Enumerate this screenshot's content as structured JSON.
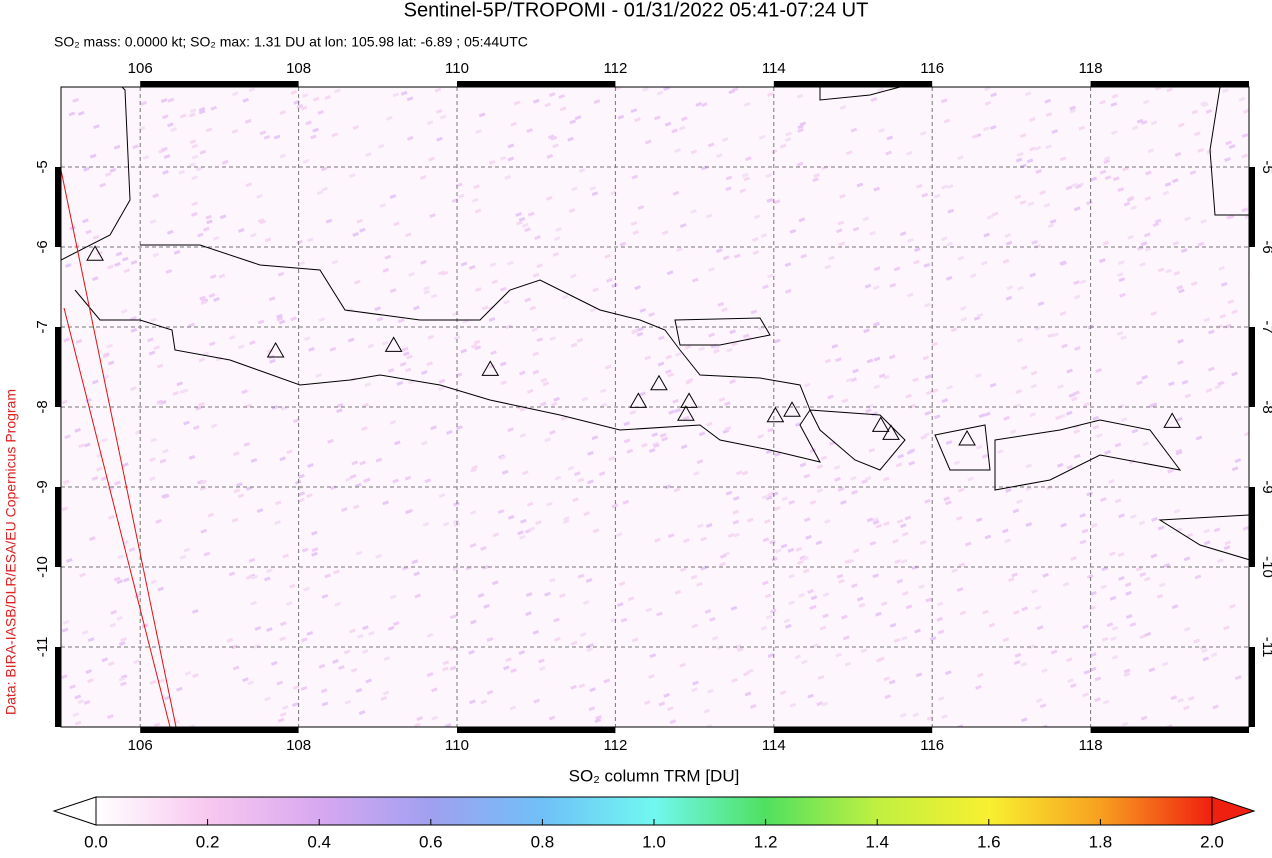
{
  "chart_data": {
    "type": "scatter",
    "title": "Sentinel-5P/TROPOMI - 01/31/2022 05:41-07:24 UT",
    "subtitle": "SO₂ mass: 0.0000 kt; SO₂ max: 1.31 DU at lon: 105.98 lat: -6.89 ; 05:44UTC",
    "x": [
      105.43,
      107.71,
      109.2,
      110.42,
      112.29,
      112.55,
      112.93,
      112.89,
      114.02,
      114.23,
      115.35,
      115.48,
      116.44,
      119.03
    ],
    "y": [
      -6.09,
      -7.3,
      -7.23,
      -7.53,
      -7.93,
      -7.71,
      -7.93,
      -8.09,
      -8.11,
      -8.04,
      -8.23,
      -8.33,
      -8.4,
      -8.18
    ],
    "xlim": [
      105,
      120
    ],
    "ylim": [
      -12,
      -4
    ],
    "xticks": [
      106,
      108,
      110,
      112,
      114,
      116,
      118
    ],
    "yticks": [
      -5,
      -6,
      -7,
      -8,
      -9,
      -10,
      -11
    ],
    "grid": true,
    "colorbar": {
      "label": "SO₂ column TRM [DU]",
      "lim": [
        0,
        2
      ],
      "ticks": [
        {
          "value": 0,
          "label": "0.0"
        },
        {
          "value": 0.2,
          "label": "0.2"
        },
        {
          "value": 0.4,
          "label": "0.4"
        },
        {
          "value": 0.6,
          "label": "0.6"
        },
        {
          "value": 0.8,
          "label": "0.8"
        },
        {
          "value": 1,
          "label": "1.0"
        },
        {
          "value": 1.2,
          "label": "1.2"
        },
        {
          "value": 1.4,
          "label": "1.4"
        },
        {
          "value": 1.6,
          "label": "1.6"
        },
        {
          "value": 1.8,
          "label": "1.8"
        },
        {
          "value": 2,
          "label": "2.0"
        }
      ],
      "colors": [
        "#ffffff",
        "#f8c8f0",
        "#d8a8f0",
        "#a0a0f0",
        "#70c0f8",
        "#70f8f0",
        "#50e060",
        "#c0f040",
        "#f8f030",
        "#f8a020",
        "#f02010"
      ]
    },
    "credit": "Data: BIRA-IASB/DLR/ESA/EU Copernicus Program"
  }
}
